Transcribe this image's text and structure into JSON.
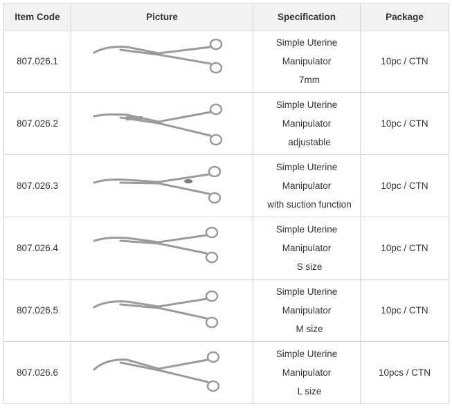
{
  "headers": {
    "item_code": "Item Code",
    "picture": "Picture",
    "specification": "Specification",
    "package": "Package"
  },
  "rows": [
    {
      "code": "807.026.1",
      "spec": [
        "Simple Uterine",
        "Manipulator",
        "7mm"
      ],
      "package": "10pc / CTN",
      "picture_icon": "forceps-icon"
    },
    {
      "code": "807.026.2",
      "spec": [
        "Simple Uterine",
        "Manipulator",
        "adjustable"
      ],
      "package": "10pc / CTN",
      "picture_icon": "forceps-icon"
    },
    {
      "code": "807.026.3",
      "spec": [
        "Simple Uterine",
        "Manipulator",
        "with suction function"
      ],
      "package": "10pc / CTN",
      "picture_icon": "forceps-icon"
    },
    {
      "code": "807.026.4",
      "spec": [
        "Simple Uterine",
        "Manipulator",
        "S size"
      ],
      "package": "10pc / CTN",
      "picture_icon": "forceps-icon"
    },
    {
      "code": "807.026.5",
      "spec": [
        "Simple Uterine",
        "Manipulator",
        "M size"
      ],
      "package": "10pc / CTN",
      "picture_icon": "forceps-icon"
    },
    {
      "code": "807.026.6",
      "spec": [
        "Simple Uterine",
        "Manipulator",
        "L size"
      ],
      "package": "10pcs / CTN",
      "picture_icon": "forceps-icon"
    }
  ],
  "colors": {
    "border": "#d4d4d4",
    "header_bg": "#f2f2f2",
    "text": "#333333",
    "instrument_steel": "#9a9a9a"
  }
}
